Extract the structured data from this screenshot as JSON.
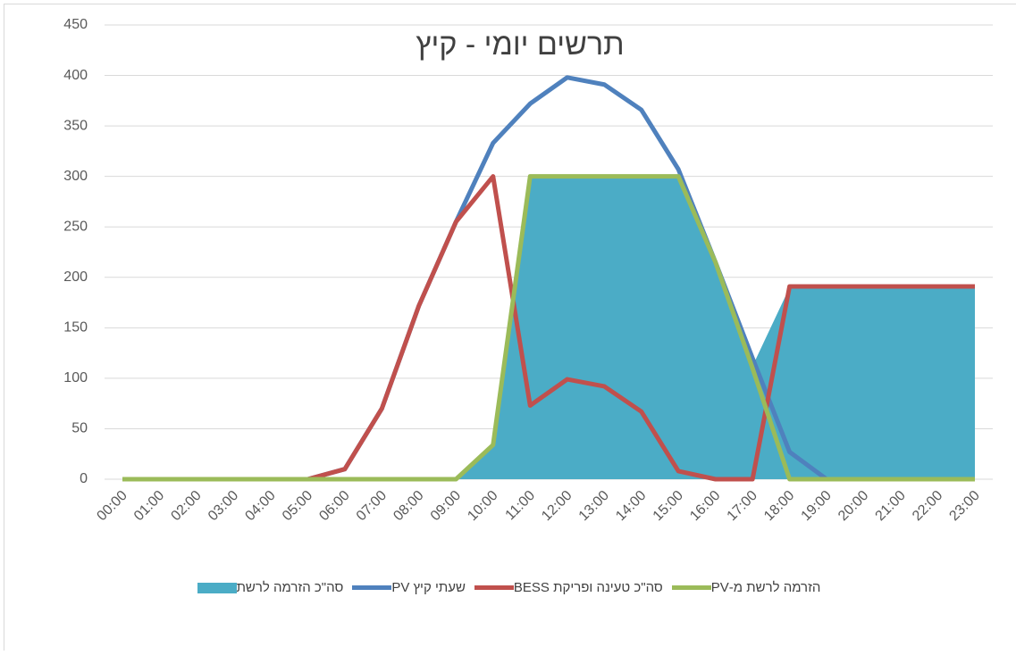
{
  "chart_data": {
    "type": "line",
    "title": "תרשים יומי - קיץ",
    "categories": [
      "00:00",
      "01:00",
      "02:00",
      "03:00",
      "04:00",
      "05:00",
      "06:00",
      "07:00",
      "08:00",
      "09:00",
      "10:00",
      "11:00",
      "12:00",
      "13:00",
      "14:00",
      "15:00",
      "16:00",
      "17:00",
      "18:00",
      "19:00",
      "20:00",
      "21:00",
      "22:00",
      "23:00"
    ],
    "series": [
      {
        "name": "סה\"כ הזרמה לרשת",
        "kind": "area",
        "color": "#4bacc6",
        "values": [
          0,
          0,
          0,
          0,
          0,
          0,
          0,
          0,
          0,
          0,
          34,
          300,
          300,
          300,
          300,
          300,
          215,
          112,
          190,
          190,
          190,
          190,
          190,
          190
        ]
      },
      {
        "name": "שעתי קיץ PV",
        "kind": "line",
        "color": "#4f81bd",
        "values": [
          0,
          0,
          0,
          0,
          0,
          0,
          10,
          70,
          172,
          255,
          333,
          372,
          398,
          391,
          366,
          307,
          215,
          120,
          27,
          0,
          0,
          0,
          0,
          0
        ]
      },
      {
        "name": "סה\"כ טעינה ופריקת BESS",
        "kind": "line",
        "color": "#c0504d",
        "values": [
          0,
          0,
          0,
          0,
          0,
          0,
          10,
          70,
          172,
          255,
          300,
          73,
          99,
          92,
          67,
          8,
          0,
          0,
          191,
          191,
          191,
          191,
          191,
          191
        ]
      },
      {
        "name": "הזרמה לרשת מ-PV",
        "kind": "line",
        "color": "#9bbb59",
        "values": [
          0,
          0,
          0,
          0,
          0,
          0,
          0,
          0,
          0,
          0,
          34,
          300,
          300,
          300,
          300,
          300,
          215,
          110,
          0,
          0,
          0,
          0,
          0,
          0
        ]
      }
    ],
    "ylim": [
      0,
      450
    ],
    "yticks": [
      0,
      50,
      100,
      150,
      200,
      250,
      300,
      350,
      400,
      450
    ],
    "grid": true
  }
}
